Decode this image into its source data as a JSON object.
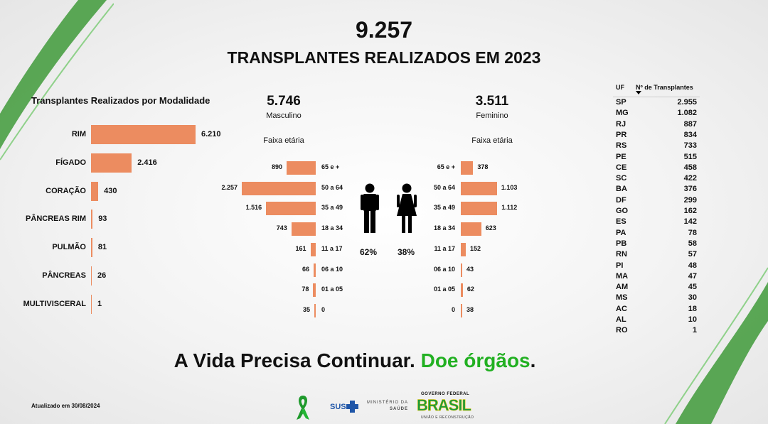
{
  "header": {
    "total": "9.257",
    "title": "TRANSPLANTES REALIZADOS EM 2023"
  },
  "colors": {
    "bar": "#ec8c60",
    "accent_green": "#22b022"
  },
  "chart_data": [
    {
      "type": "bar",
      "orientation": "horizontal",
      "title": "Transplantes Realizados por Modalidade",
      "categories": [
        "RIM",
        "FÍGADO",
        "CORAÇÃO",
        "PÂNCREAS RIM",
        "PULMÃO",
        "PÂNCREAS",
        "MULTIVISCERAL"
      ],
      "values": [
        6210,
        2416,
        430,
        93,
        81,
        26,
        1
      ],
      "value_labels": [
        "6.210",
        "2.416",
        "430",
        "93",
        "81",
        "26",
        "1"
      ]
    },
    {
      "type": "bar",
      "orientation": "horizontal",
      "title": "Masculino",
      "total": "5.746",
      "axis_label": "Faixa etária",
      "percent": "62%",
      "categories": [
        "65 e +",
        "50 a 64",
        "35 a 49",
        "18 a 34",
        "11 a 17",
        "06 a 10",
        "01 a 05",
        "0"
      ],
      "values": [
        890,
        2257,
        1516,
        743,
        161,
        66,
        78,
        35
      ],
      "value_labels": [
        "890",
        "2.257",
        "1.516",
        "743",
        "161",
        "66",
        "78",
        "35"
      ]
    },
    {
      "type": "bar",
      "orientation": "horizontal",
      "title": "Feminino",
      "total": "3.511",
      "axis_label": "Faixa etária",
      "percent": "38%",
      "categories": [
        "65 e +",
        "50 a 64",
        "35 a 49",
        "18 a 34",
        "11 a 17",
        "06 a 10",
        "01 a 05",
        "0"
      ],
      "values": [
        378,
        1103,
        1112,
        623,
        152,
        43,
        62,
        38
      ],
      "value_labels": [
        "378",
        "1.103",
        "1.112",
        "623",
        "152",
        "43",
        "62",
        "38"
      ]
    },
    {
      "type": "table",
      "columns": [
        "UF",
        "Nº de Transplantes"
      ],
      "rows": [
        [
          "SP",
          "2.955"
        ],
        [
          "MG",
          "1.082"
        ],
        [
          "RJ",
          "887"
        ],
        [
          "PR",
          "834"
        ],
        [
          "RS",
          "733"
        ],
        [
          "PE",
          "515"
        ],
        [
          "CE",
          "458"
        ],
        [
          "SC",
          "422"
        ],
        [
          "BA",
          "376"
        ],
        [
          "DF",
          "299"
        ],
        [
          "GO",
          "162"
        ],
        [
          "ES",
          "142"
        ],
        [
          "PA",
          "78"
        ],
        [
          "PB",
          "58"
        ],
        [
          "RN",
          "57"
        ],
        [
          "PI",
          "48"
        ],
        [
          "MA",
          "47"
        ],
        [
          "AM",
          "45"
        ],
        [
          "MS",
          "30"
        ],
        [
          "AC",
          "18"
        ],
        [
          "AL",
          "10"
        ],
        [
          "RO",
          "1"
        ]
      ]
    }
  ],
  "slogan": {
    "part1": "A Vida Precisa Continuar.",
    "part2": "Doe órgãos",
    "part3": "."
  },
  "footer": {
    "updated": "Atualizado em 30/08/2024",
    "sus": "SUS",
    "ministerio_line1": "MINISTÉRIO DA",
    "ministerio_line2": "SAÚDE",
    "gov_line1": "GOVERNO FEDERAL",
    "gov_brand": "BRASIL",
    "gov_line2": "UNIÃO E RECONSTRUÇÃO"
  }
}
